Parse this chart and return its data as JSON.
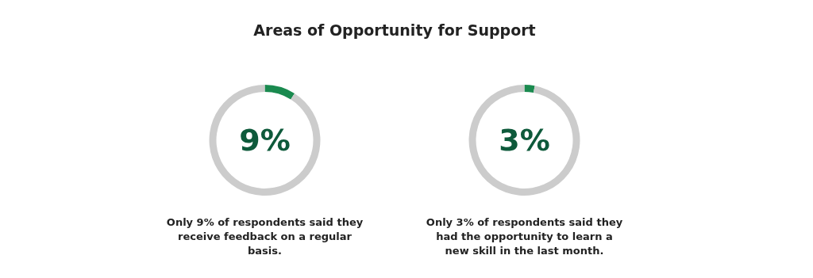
{
  "chart_data": [
    {
      "type": "donut",
      "title": "Areas of Opportunity for Support",
      "categories": [
        null,
        null
      ],
      "values": [
        9,
        91
      ],
      "colors": [
        "#1a8a4f",
        "#cccccc"
      ],
      "annotations": [
        "9%",
        "Only 9% of respondents said they receive feedback on a regular basis."
      ]
    },
    {
      "type": "donut",
      "categories": [
        null,
        null
      ],
      "values": [
        3,
        97
      ],
      "colors": [
        "#1a8a4f",
        "#cccccc"
      ],
      "annotations": [
        "3%",
        "Only 3% of respondents said they had the opportunity to learn a new skill in the last month."
      ]
    }
  ]
}
